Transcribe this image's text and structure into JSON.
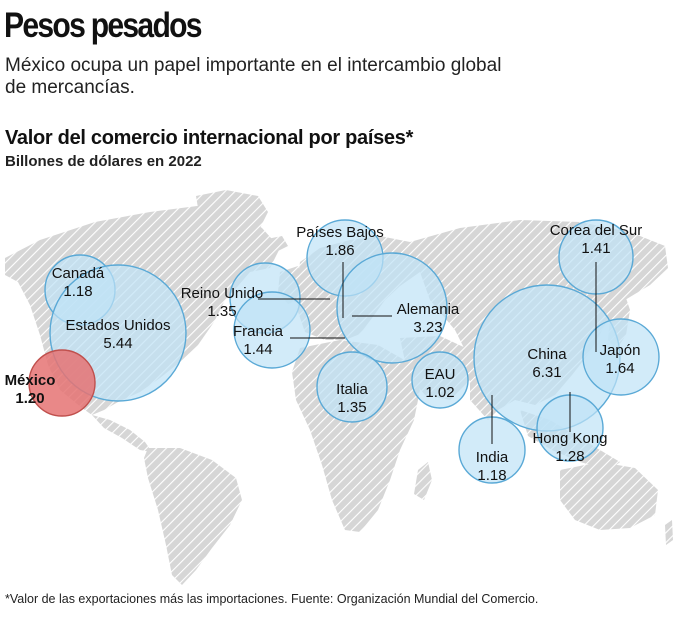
{
  "header": {
    "title": "Pesos pesados",
    "dek": "México ocupa un papel importante en el intercambio global de mercancías."
  },
  "footnote": "*Valor de las exportaciones más las importaciones. Fuente: Organización Mundial del Comercio.",
  "colors": {
    "bubble_fill": "#bfe3f6",
    "bubble_stroke": "#5aa9d6",
    "highlight_fill": "#e57373",
    "highlight_stroke": "#c0504d",
    "land": "#c8c8c8",
    "leader": "#111111"
  },
  "chart_data": {
    "type": "bubble-map",
    "title": "Valor del comercio internacional por países*",
    "subtitle": "Billones de dólares en 2022",
    "highlight": "México",
    "points": [
      {
        "name": "Canadá",
        "value": "1.18"
      },
      {
        "name": "Estados Unidos",
        "value": "5.44"
      },
      {
        "name": "México",
        "value": "1.20"
      },
      {
        "name": "Reino Unido",
        "value": "1.35"
      },
      {
        "name": "Francia",
        "value": "1.44"
      },
      {
        "name": "Países Bajos",
        "value": "1.86"
      },
      {
        "name": "Alemania",
        "value": "3.23"
      },
      {
        "name": "Italia",
        "value": "1.35"
      },
      {
        "name": "EAU",
        "value": "1.02"
      },
      {
        "name": "India",
        "value": "1.18"
      },
      {
        "name": "China",
        "value": "6.31"
      },
      {
        "name": "Hong Kong",
        "value": "1.28"
      },
      {
        "name": "Corea del Sur",
        "value": "1.41"
      },
      {
        "name": "Japón",
        "value": "1.64"
      }
    ]
  }
}
